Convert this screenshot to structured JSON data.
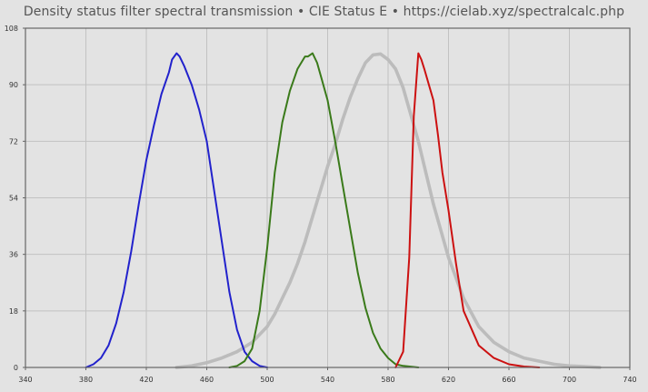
{
  "chart_data": {
    "type": "line",
    "title": "Density status filter spectral transmission  •  CIE Status E  •  https://cielab.xyz/spectralcalc.php",
    "xlabel": "",
    "ylabel": "",
    "xlim": [
      340,
      740
    ],
    "ylim": [
      0,
      108
    ],
    "x_ticks": [
      "340",
      "380",
      "420",
      "460",
      "500",
      "540",
      "580",
      "620",
      "660",
      "700",
      "740"
    ],
    "y_ticks": [
      "0",
      "18",
      "36",
      "54",
      "72",
      "90",
      "108"
    ],
    "grid": true,
    "legend": "none",
    "series": [
      {
        "color": "#bcbcbc",
        "x": [
          440,
          450,
          460,
          470,
          480,
          490,
          500,
          505,
          510,
          515,
          520,
          525,
          530,
          535,
          540,
          545,
          550,
          555,
          560,
          565,
          570,
          575,
          580,
          585,
          590,
          600,
          610,
          620,
          630,
          640,
          650,
          660,
          670,
          680,
          690,
          700,
          710,
          720
        ],
        "y": [
          0,
          0.5,
          1.5,
          3,
          5,
          8,
          13,
          17,
          22,
          27,
          33,
          40,
          48,
          56,
          64,
          71,
          79,
          86,
          92,
          97,
          99.5,
          99.8,
          98,
          95,
          89,
          72,
          52,
          35,
          22,
          13,
          8,
          5,
          3,
          2,
          1,
          0.5,
          0.3,
          0
        ]
      },
      {
        "color": "#2222cc",
        "x": [
          380,
          385,
          390,
          395,
          400,
          405,
          410,
          415,
          420,
          425,
          430,
          435,
          437,
          440,
          442,
          445,
          450,
          455,
          460,
          465,
          470,
          475,
          480,
          485,
          490,
          495,
          500
        ],
        "y": [
          0,
          1,
          3,
          7,
          14,
          24,
          37,
          52,
          66,
          77,
          87,
          94,
          98,
          100,
          99,
          96,
          90,
          82,
          72,
          56,
          40,
          24,
          12,
          5,
          2,
          0.5,
          0
        ]
      },
      {
        "color": "#3a7a1a",
        "x": [
          475,
          480,
          485,
          490,
          495,
          500,
          505,
          510,
          515,
          520,
          525,
          527,
          530,
          533,
          536,
          540,
          545,
          550,
          555,
          560,
          565,
          570,
          575,
          580,
          585,
          590,
          600
        ],
        "y": [
          0,
          0.5,
          2,
          6,
          18,
          38,
          62,
          78,
          88,
          95,
          99,
          99,
          100,
          97,
          92,
          85,
          72,
          58,
          44,
          30,
          19,
          11,
          6,
          3,
          1,
          0.5,
          0
        ]
      },
      {
        "color": "#cc1111",
        "x": [
          585,
          590,
          594,
          597,
          600,
          602,
          604,
          607,
          610,
          613,
          616,
          620,
          625,
          630,
          640,
          650,
          660,
          670,
          680
        ],
        "y": [
          0,
          5,
          35,
          80,
          100,
          98,
          95,
          90,
          85,
          74,
          62,
          50,
          33,
          18,
          7,
          3,
          1,
          0.3,
          0
        ]
      }
    ]
  }
}
